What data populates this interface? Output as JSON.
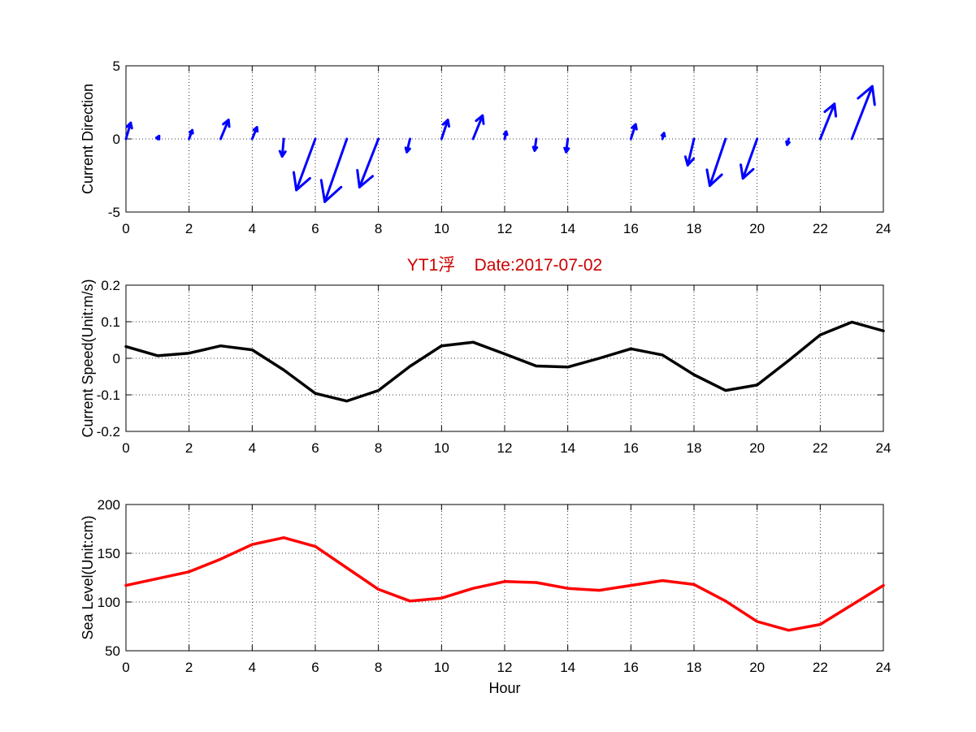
{
  "chart_data": [
    {
      "type": "quiver",
      "title": "",
      "xlabel": "",
      "ylabel": "Current Direction",
      "xlim": [
        0,
        24
      ],
      "ylim": [
        -5,
        5
      ],
      "xticks": [
        0,
        2,
        4,
        6,
        8,
        10,
        12,
        14,
        16,
        18,
        20,
        22,
        24
      ],
      "yticks": [
        -5,
        0,
        5
      ],
      "grid": true,
      "color": "#0000ff",
      "x": [
        0,
        1,
        2,
        3,
        4,
        5,
        6,
        7,
        8,
        9,
        10,
        11,
        12,
        13,
        14,
        15,
        16,
        17,
        18,
        19,
        20,
        21,
        22,
        23
      ],
      "u": [
        0.15,
        0.05,
        0.1,
        0.25,
        0.15,
        -0.05,
        -0.6,
        -0.7,
        -0.6,
        -0.1,
        0.2,
        0.3,
        0.05,
        -0.05,
        -0.05,
        0,
        0.15,
        0.05,
        -0.2,
        -0.5,
        -0.45,
        -0.05,
        0.45,
        0.65
      ],
      "v": [
        1.1,
        0.2,
        0.6,
        1.3,
        0.8,
        -1.2,
        -3.5,
        -4.3,
        -3.3,
        -0.9,
        1.3,
        1.6,
        0.5,
        -0.8,
        -0.9,
        0,
        1.0,
        0.4,
        -1.8,
        -3.2,
        -2.7,
        -0.4,
        2.4,
        3.6
      ]
    },
    {
      "type": "line",
      "title": "YT1浮    Date:2017-07-02",
      "title_color": "#cc0000",
      "xlabel": "",
      "ylabel": "Current Speed(Unit:m/s)",
      "xlim": [
        0,
        24
      ],
      "ylim": [
        -0.2,
        0.2
      ],
      "xticks": [
        0,
        2,
        4,
        6,
        8,
        10,
        12,
        14,
        16,
        18,
        20,
        22,
        24
      ],
      "yticks": [
        -0.2,
        -0.1,
        0,
        0.1,
        0.2
      ],
      "ytick_labels": [
        "-0.2",
        "-0.1",
        "0",
        "0.1",
        "0.2"
      ],
      "grid": true,
      "series": [
        {
          "color": "#000000",
          "x": [
            0,
            1,
            2,
            3,
            4,
            5,
            6,
            7,
            8,
            9,
            10,
            11,
            12,
            13,
            14,
            15,
            16,
            17,
            18,
            19,
            20,
            21,
            22,
            23,
            24
          ],
          "values": [
            0.032,
            0.007,
            0.014,
            0.034,
            0.023,
            -0.032,
            -0.096,
            -0.117,
            -0.088,
            -0.022,
            0.034,
            0.044,
            0.012,
            -0.021,
            -0.024,
            0.0,
            0.026,
            0.009,
            -0.045,
            -0.088,
            -0.073,
            -0.006,
            0.064,
            0.099,
            0.075
          ]
        }
      ]
    },
    {
      "type": "line",
      "title": "",
      "xlabel": "Hour",
      "ylabel": "Sea Level(Unit:cm)",
      "xlim": [
        0,
        24
      ],
      "ylim": [
        50,
        200
      ],
      "xticks": [
        0,
        2,
        4,
        6,
        8,
        10,
        12,
        14,
        16,
        18,
        20,
        22,
        24
      ],
      "yticks": [
        50,
        100,
        150,
        200
      ],
      "grid": true,
      "series": [
        {
          "color": "#ff0000",
          "x": [
            0,
            1,
            2,
            3,
            4,
            5,
            6,
            7,
            8,
            9,
            10,
            11,
            12,
            13,
            14,
            15,
            16,
            17,
            18,
            19,
            20,
            21,
            22,
            23,
            24
          ],
          "values": [
            117,
            124,
            131,
            144,
            159,
            166,
            157,
            135,
            113,
            101,
            104,
            114,
            121,
            120,
            114,
            112,
            117,
            122,
            118,
            101,
            80,
            71,
            77,
            97,
            117
          ]
        }
      ]
    }
  ]
}
